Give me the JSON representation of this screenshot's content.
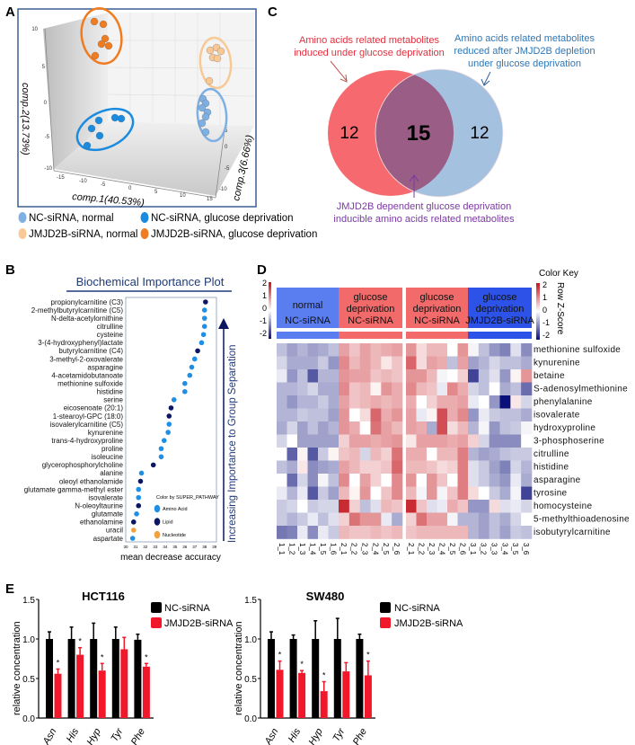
{
  "panel_labels": {
    "a": "A",
    "b": "B",
    "c": "C",
    "d": "D",
    "e": "E"
  },
  "colors": {
    "nc_normal": "#7fb0e3",
    "nc_glucose": "#1b8be0",
    "jm_normal": "#f8c995",
    "jm_glucose": "#f07c22",
    "amino": "#1f8fe6",
    "lipid": "#0c1760",
    "nucleotide": "#f2a23c",
    "nc": "#000000",
    "jmjd2b": "#f0182a"
  },
  "chart_data": [
    {
      "id": "A",
      "type": "scatter",
      "subtype": "3d-pca",
      "xlabel": "comp.1(40.53%)",
      "ylabel": "comp.2(13.73%)",
      "zlabel": "comp.3(6.66%)",
      "x_ticks": [
        "-15",
        "-10",
        "-5",
        "0",
        "5",
        "10",
        "15"
      ],
      "y_ticks": [
        "10",
        "5",
        "0",
        "-5",
        "-10"
      ],
      "z_ticks": [
        "5",
        "0",
        "-5",
        "-10"
      ],
      "legend": [
        {
          "label": "NC-siRNA, normal",
          "color": "#7fb0e3"
        },
        {
          "label": "NC-siRNA, glucose deprivation",
          "color": "#1b8be0"
        },
        {
          "label": "JMJD2B-siRNA, normal",
          "color": "#f8c995"
        },
        {
          "label": "JMJD2B-siRNA, glucose deprivation",
          "color": "#f07c22"
        }
      ]
    },
    {
      "id": "B",
      "type": "scatter",
      "subtype": "dot-plot",
      "title": "Biochemical Importance Plot",
      "xlabel": "mean decrease accuracy",
      "ylabel": "Increasing Importance to Group Separation",
      "xlim": [
        30,
        39
      ],
      "x_ticks": [
        "30",
        "31",
        "32",
        "33",
        "34",
        "35",
        "36",
        "37",
        "38",
        "39"
      ],
      "legend_title": "Color by SUPER_PATHWAY",
      "legend": [
        {
          "label": "Amino Acid",
          "key": "amino"
        },
        {
          "label": "Lipid",
          "key": "lipid"
        },
        {
          "label": "Nucleotide",
          "key": "nucleotide"
        }
      ],
      "points": [
        {
          "name": "propionylcarnitine (C3)",
          "value": 38.1,
          "class": "lipid"
        },
        {
          "name": "2-methylbutyrylcarnitine (C5)",
          "value": 38.0,
          "class": "amino"
        },
        {
          "name": "N-delta-acetylornithine",
          "value": 38.0,
          "class": "amino"
        },
        {
          "name": "citrulline",
          "value": 38.0,
          "class": "amino"
        },
        {
          "name": "cysteine",
          "value": 37.9,
          "class": "amino"
        },
        {
          "name": "3-(4-hydroxyphenyl)lactate",
          "value": 37.7,
          "class": "amino"
        },
        {
          "name": "butyrylcarnitine (C4)",
          "value": 37.3,
          "class": "lipid"
        },
        {
          "name": "3-methyl-2-oxovalerate",
          "value": 37.0,
          "class": "amino"
        },
        {
          "name": "asparagine",
          "value": 36.7,
          "class": "amino"
        },
        {
          "name": "4-acetamidobutanoate",
          "value": 36.5,
          "class": "amino"
        },
        {
          "name": "methionine sulfoxide",
          "value": 36.0,
          "class": "amino"
        },
        {
          "name": "histidine",
          "value": 36.0,
          "class": "amino"
        },
        {
          "name": "serine",
          "value": 34.9,
          "class": "amino"
        },
        {
          "name": "eicosenoate (20:1)",
          "value": 34.6,
          "class": "lipid"
        },
        {
          "name": "1-stearoyl-GPC (18:0)",
          "value": 34.4,
          "class": "lipid"
        },
        {
          "name": "isovalerylcarnitine (C5)",
          "value": 34.4,
          "class": "amino"
        },
        {
          "name": "kynurenine",
          "value": 34.3,
          "class": "amino"
        },
        {
          "name": "trans-4-hydroxyproline",
          "value": 33.9,
          "class": "amino"
        },
        {
          "name": "proline",
          "value": 33.6,
          "class": "amino"
        },
        {
          "name": "isoleucine",
          "value": 33.6,
          "class": "amino"
        },
        {
          "name": "glycerophosphorylcholine",
          "value": 32.8,
          "class": "lipid"
        },
        {
          "name": "alanine",
          "value": 31.6,
          "class": "amino"
        },
        {
          "name": "oleoyl ethanolamide",
          "value": 31.5,
          "class": "lipid"
        },
        {
          "name": "glutamate gamma-methyl ester",
          "value": 31.3,
          "class": "amino"
        },
        {
          "name": "isovalerate",
          "value": 31.3,
          "class": "amino"
        },
        {
          "name": "N-oleoyltaurine",
          "value": 31.3,
          "class": "lipid"
        },
        {
          "name": "glutamate",
          "value": 31.1,
          "class": "amino"
        },
        {
          "name": "ethanolamine",
          "value": 30.8,
          "class": "lipid"
        },
        {
          "name": "uracil",
          "value": 30.8,
          "class": "nucleotide"
        },
        {
          "name": "aspartate",
          "value": 30.7,
          "class": "amino"
        }
      ]
    },
    {
      "id": "C",
      "type": "venn",
      "sets": [
        {
          "label": "Amino acids related metabolites induced under glucose deprivation",
          "lines": [
            "Amino acids related metabolites",
            "induced under glucose deprivation"
          ],
          "only": "12"
        },
        {
          "label": "Amino acids related metabolites reduced after JMJD2B depletion under glucose deprivation",
          "lines": [
            "Amino acids related metabolites",
            "reduced  after JMJD2B depletion",
            "under  glucose deprivation"
          ],
          "only": "12"
        }
      ],
      "intersection": "15",
      "intersection_lines": [
        "JMJD2B dependent  glucose deprivation",
        "inducible  amino acids related metabolites"
      ]
    },
    {
      "id": "D",
      "type": "heatmap",
      "colorkey_title": "Color Key",
      "colorkey_label": "Row Z-Score",
      "scale_ticks": [
        "2",
        "1",
        "0",
        "-1",
        "-2"
      ],
      "groups": [
        {
          "lines": [
            "normal",
            "NC-siRNA"
          ],
          "color": "#5a7ef0"
        },
        {
          "lines": [
            "glucose",
            "deprivation",
            "NC-siRNA"
          ],
          "color": "#f26a6a"
        },
        {
          "lines": [
            "glucose",
            "deprivation",
            "NC-siRNA"
          ],
          "color": "#f26a6a"
        },
        {
          "lines": [
            "glucose",
            "deprivation",
            "JMJD2B-siRNA"
          ],
          "color": "#2c52e8"
        }
      ],
      "columns": [
        "1_1",
        "1_2",
        "1_3",
        "1_4",
        "1_5",
        "1_6",
        "2_1",
        "2_2",
        "2_3",
        "2_4",
        "2_5",
        "2_6",
        "2_1",
        "2_2",
        "2_3",
        "2_4",
        "2_5",
        "2_6",
        "3_1",
        "3_2",
        "3_3",
        "3_4",
        "3_5",
        "3_6"
      ],
      "rows": [
        "methionine sulfoxide",
        "kynurenine",
        "betaine",
        "S-adenosylmethionine",
        "phenylalanine",
        "isovalerate",
        "hydroxyproline",
        "3-phosphoserine",
        "citrulline",
        "histidine",
        "asparagine",
        "tyrosine",
        "homocysteine",
        "5-methylthioadenosine",
        "isobutyrylcarnitine"
      ],
      "values": [
        [
          -0.6,
          -0.9,
          -0.7,
          -0.9,
          -0.8,
          -0.6,
          0.8,
          0.5,
          0.8,
          0.6,
          0.7,
          0.8,
          0.9,
          0.3,
          0.6,
          0.6,
          0,
          0.9,
          -0.1,
          -0.6,
          -1,
          -1.2,
          -0.3,
          -1.1
        ],
        [
          -0.4,
          -0.8,
          -0.8,
          -0.8,
          -0.5,
          -1.0,
          1.0,
          0.6,
          0.8,
          0.6,
          0.2,
          0.5,
          1.3,
          0.3,
          0.8,
          0.7,
          -0.6,
          0.8,
          -0.9,
          -0.7,
          -0.4,
          -0.6,
          -0.6,
          -0.8
        ],
        [
          -0.2,
          -1.0,
          -0.6,
          -1.6,
          -0.7,
          -0.7,
          0.9,
          0.8,
          0.8,
          0.5,
          0.6,
          0.5,
          0.9,
          0.9,
          0.6,
          -0.1,
          0,
          0.4,
          -1.8,
          -0.6,
          -0.3,
          -1.0,
          0.1,
          0.9
        ],
        [
          -0.7,
          -0.7,
          -0.6,
          -0.4,
          -0.8,
          -0.8,
          1.0,
          0.5,
          0.6,
          0.1,
          0.9,
          0.7,
          1.0,
          0.6,
          0.5,
          -0.2,
          1.0,
          0.7,
          -0.4,
          -0.6,
          0,
          -0.8,
          -0.6,
          -1.4
        ],
        [
          -0.7,
          -1.0,
          -0.7,
          -0.7,
          -0.5,
          -0.8,
          0.8,
          0.5,
          0.6,
          0.7,
          0.6,
          0.7,
          0.7,
          0,
          0.4,
          0.7,
          0.7,
          0.8,
          -0.2,
          0,
          -1.0,
          -2.3,
          0.2,
          -0.4
        ],
        [
          -0.7,
          -0.7,
          -0.5,
          -0.6,
          -0.6,
          -0.9,
          0.9,
          0,
          0.3,
          1.3,
          0.7,
          0.9,
          0.8,
          -0.2,
          0.1,
          1.5,
          0.7,
          1.0,
          -1.0,
          -0.2,
          -0.5,
          -0.6,
          -0.6,
          -0.8
        ],
        [
          -0.8,
          -0.4,
          -0.9,
          -0.6,
          -0.9,
          -0.7,
          0.9,
          0.7,
          0,
          1.2,
          0.8,
          0.6,
          0.8,
          0.7,
          -0.8,
          1.5,
          0.3,
          0.6,
          -0.7,
          -0.1,
          -1.0,
          -0.6,
          -0.5,
          -0.1
        ],
        [
          -0.4,
          0,
          -0.9,
          -0.9,
          -0.9,
          -0.9,
          0.4,
          0.8,
          0.8,
          0.7,
          0.8,
          0.9,
          0.2,
          0.8,
          0.8,
          0.8,
          0.7,
          0.8,
          0.4,
          -0.4,
          -1.1,
          -1.1,
          -1.1,
          0
        ],
        [
          0,
          -1.5,
          0.1,
          -1.6,
          -0.5,
          0.1,
          0.5,
          0.6,
          -0.4,
          0.6,
          0.4,
          1.2,
          0.7,
          0.7,
          0,
          0.6,
          0.6,
          1.1,
          -0.7,
          -0.9,
          -0.8,
          -0.6,
          -0.5,
          -0.5
        ],
        [
          -0.6,
          -0.8,
          0.2,
          -1.1,
          -0.9,
          -0.8,
          0.8,
          0.6,
          0.4,
          0.4,
          0.5,
          1.3,
          0.6,
          0.6,
          0.5,
          0.3,
          0.4,
          1.1,
          -0.3,
          -0.5,
          -0.9,
          -1.2,
          -0.4,
          -0.7
        ],
        [
          0,
          -1.4,
          -0.4,
          -1.1,
          -0.1,
          -0.6,
          1.0,
          0,
          0.8,
          0.4,
          0,
          1.0,
          0.9,
          0,
          0.9,
          0.5,
          0,
          1.1,
          -0.3,
          -0.5,
          -0.8,
          -1.0,
          -0.2,
          -0.8
        ],
        [
          -0.2,
          -0.7,
          -0.2,
          -1.6,
          -0.5,
          -0.9,
          0.6,
          0.1,
          0.9,
          0,
          0.5,
          1.0,
          0.6,
          -0.1,
          0.9,
          -0.1,
          0.5,
          1.1,
          0.3,
          0,
          -0.5,
          -0.8,
          -0.1,
          -1.8
        ],
        [
          -0.5,
          -0.4,
          0,
          -0.5,
          -0.4,
          -0.4,
          1.8,
          0.4,
          -0.6,
          -0.3,
          0.6,
          0.5,
          1.8,
          0.5,
          -0.3,
          -0.2,
          0.7,
          0.5,
          -1.0,
          -1.0,
          0.3,
          -0.3,
          -0.2,
          -0.4
        ],
        [
          -0.5,
          -0.7,
          -0.5,
          -0.2,
          -0.6,
          -0.3,
          0.4,
          1.2,
          0.9,
          0.9,
          -0.2,
          -0.8,
          0.4,
          1.2,
          0.8,
          0.8,
          -0.1,
          -0.7,
          -0.7,
          -0.9,
          -0.6,
          -0.8,
          -0.4,
          0
        ],
        [
          -1.3,
          -1.2,
          -0.2,
          -1.1,
          -0.2,
          -0.5,
          0.6,
          0.5,
          0.5,
          0.6,
          0.5,
          0.6,
          0.5,
          0.6,
          0.6,
          0.6,
          0.6,
          0.6,
          -0.7,
          -0.9,
          -0.6,
          -0.9,
          -0.5,
          -0.6
        ]
      ]
    },
    {
      "id": "E1",
      "type": "bar",
      "title": "HCT116",
      "ylabel": "relative concentration",
      "ylim": [
        0,
        1.5
      ],
      "y_ticks": [
        "0.0",
        "0.5",
        "1.0",
        "1.5"
      ],
      "categories": [
        "Asn",
        "His",
        "Hyp",
        "Tyr",
        "Phe"
      ],
      "series": [
        {
          "name": "NC-siRNA",
          "values": [
            1.0,
            1.0,
            1.0,
            1.0,
            0.99
          ],
          "errors": [
            0.09,
            0.15,
            0.2,
            0.15,
            0.07
          ]
        },
        {
          "name": "JMJD2B-siRNA",
          "values": [
            0.56,
            0.8,
            0.6,
            0.87,
            0.65
          ],
          "errors": [
            0.06,
            0.09,
            0.09,
            0.15,
            0.04
          ]
        }
      ],
      "significance": [
        "*",
        "*",
        "*",
        "",
        "*"
      ]
    },
    {
      "id": "E2",
      "type": "bar",
      "title": "SW480",
      "ylabel": "relative concentration",
      "ylim": [
        0,
        1.5
      ],
      "y_ticks": [
        "0.0",
        "0.5",
        "1.0",
        "1.5"
      ],
      "categories": [
        "Asn",
        "His",
        "Hyp",
        "Tyr",
        "Phe"
      ],
      "series": [
        {
          "name": "NC-siRNA",
          "values": [
            1.0,
            1.0,
            1.0,
            1.0,
            1.0
          ],
          "errors": [
            0.09,
            0.05,
            0.23,
            0.26,
            0.06
          ]
        },
        {
          "name": "JMJD2B-siRNA",
          "values": [
            0.61,
            0.57,
            0.34,
            0.59,
            0.54
          ],
          "errors": [
            0.11,
            0.03,
            0.12,
            0.11,
            0.18
          ]
        }
      ],
      "significance": [
        "*",
        "*",
        "*",
        "",
        "*"
      ]
    }
  ]
}
